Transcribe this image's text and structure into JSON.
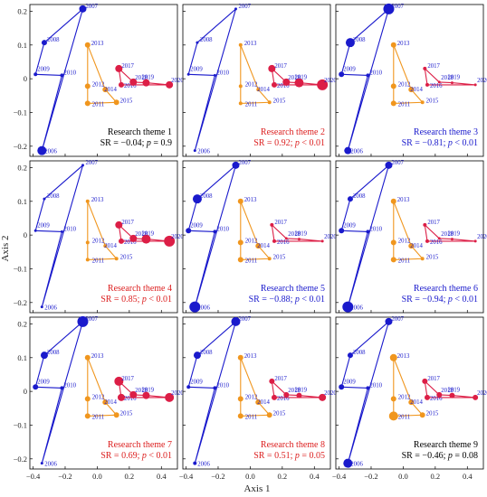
{
  "chart_data": {
    "type": "scatter",
    "xlabel": "Axis 1",
    "ylabel": "Axis 2",
    "xlim": [
      -0.42,
      0.5
    ],
    "ylim": [
      -0.23,
      0.22
    ],
    "xticks": [
      -0.4,
      -0.2,
      0.0,
      0.2,
      0.4
    ],
    "xtick_labels": [
      "−0.4",
      "−0.2",
      "0.0",
      "0.2",
      "0.4"
    ],
    "yticks": [
      -0.2,
      -0.1,
      0.0,
      0.1,
      0.2
    ],
    "ytick_labels": [
      "−0.2",
      "−0.1",
      "0",
      "0.1",
      "0.2"
    ],
    "colors": {
      "period1": "#1a1acc",
      "period2": "#f0961e",
      "period3": "#dc1e46"
    },
    "groups": [
      {
        "color": "period1",
        "points": [
          {
            "year": "2006",
            "x": -0.345,
            "y": -0.213
          },
          {
            "year": "2007",
            "x": -0.09,
            "y": 0.207
          },
          {
            "year": "2008",
            "x": -0.33,
            "y": 0.107
          },
          {
            "year": "2009",
            "x": -0.385,
            "y": 0.013
          },
          {
            "year": "2010",
            "x": -0.22,
            "y": 0.01
          }
        ]
      },
      {
        "color": "period2",
        "points": [
          {
            "year": "2011",
            "x": -0.06,
            "y": -0.073
          },
          {
            "year": "2012",
            "x": -0.06,
            "y": -0.022
          },
          {
            "year": "2013",
            "x": -0.06,
            "y": 0.1
          },
          {
            "year": "2014",
            "x": 0.05,
            "y": -0.032
          },
          {
            "year": "2015",
            "x": 0.12,
            "y": -0.07
          }
        ]
      },
      {
        "color": "period3",
        "points": [
          {
            "year": "2016",
            "x": 0.15,
            "y": -0.018
          },
          {
            "year": "2017",
            "x": 0.135,
            "y": 0.03
          },
          {
            "year": "2018",
            "x": 0.225,
            "y": -0.01
          },
          {
            "year": "2019",
            "x": 0.305,
            "y": -0.012
          },
          {
            "year": "2020",
            "x": 0.45,
            "y": -0.018
          }
        ]
      }
    ],
    "panels": [
      {
        "title": "Research theme 1",
        "sr": "−0.04",
        "p_rel": "=",
        "p": "0.9",
        "text_color": "#000000",
        "sizes": [
          5,
          4,
          3,
          2,
          2,
          3,
          3,
          3,
          3,
          3,
          3,
          4,
          4,
          4,
          4
        ]
      },
      {
        "title": "Research theme 2",
        "sr": "0.92",
        "p_rel": "<",
        "p": "0.01",
        "text_color": "#dc1e1e",
        "sizes": [
          1.5,
          1.5,
          1.5,
          1.5,
          1.5,
          2,
          2,
          2,
          2,
          2,
          3,
          4,
          4,
          5,
          6
        ]
      },
      {
        "title": "Research theme 3",
        "sr": "−0.81",
        "p_rel": "<",
        "p": "0.01",
        "text_color": "#1a1acc",
        "sizes": [
          4,
          6,
          5,
          3,
          2,
          3,
          3,
          3,
          3,
          2,
          2,
          2,
          1.5,
          1.5,
          1.5
        ]
      },
      {
        "title": "Research theme 4",
        "sr": "0.85",
        "p_rel": "<",
        "p": "0.01",
        "text_color": "#dc1e1e",
        "sizes": [
          1.5,
          1.5,
          1.5,
          1.5,
          1.5,
          2,
          2,
          2,
          2,
          2,
          3,
          4,
          4,
          5,
          6
        ]
      },
      {
        "title": "Research theme 5",
        "sr": "−0.88",
        "p_rel": "<",
        "p": "0.01",
        "text_color": "#1a1acc",
        "sizes": [
          6,
          4,
          5,
          3,
          2,
          3,
          3,
          3,
          3,
          2,
          2,
          2,
          1.5,
          1.5,
          1.5
        ]
      },
      {
        "title": "Research theme 6",
        "sr": "−0.94",
        "p_rel": "<",
        "p": "0.01",
        "text_color": "#1a1acc",
        "sizes": [
          6,
          4,
          3,
          3,
          2,
          3,
          3,
          3,
          3,
          2,
          2,
          2,
          1.5,
          1.5,
          1.5
        ]
      },
      {
        "title": "Research theme 7",
        "sr": "0.69",
        "p_rel": "<",
        "p": "0.01",
        "text_color": "#dc1e1e",
        "sizes": [
          1.5,
          6,
          4,
          3,
          2,
          3,
          3,
          3,
          3,
          3,
          4,
          5,
          4,
          4,
          5
        ]
      },
      {
        "title": "Research theme 8",
        "sr": "0.51",
        "p_rel": "=",
        "p": "0.05",
        "text_color": "#dc1e1e",
        "sizes": [
          2,
          5,
          4,
          2,
          2,
          3,
          3,
          3,
          3,
          3,
          3,
          3,
          3,
          3,
          4
        ]
      },
      {
        "title": "Research theme 9",
        "sr": "−0.46",
        "p_rel": "=",
        "p": "0.08",
        "text_color": "#000000",
        "sizes": [
          5,
          4,
          3,
          3,
          2,
          5,
          3,
          4,
          3,
          3,
          3,
          3,
          3,
          3,
          3
        ]
      }
    ]
  }
}
